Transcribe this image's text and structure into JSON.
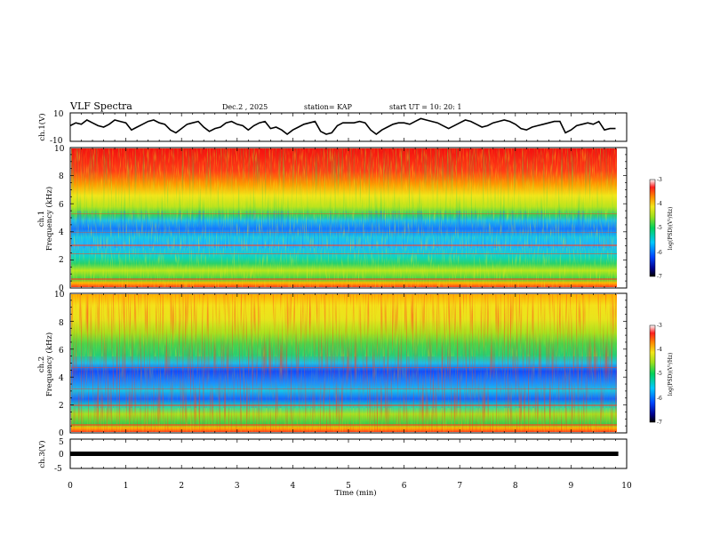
{
  "header": {
    "title": "VLF Spectra",
    "date": "Dec.2  , 2025",
    "station": "station= KAP",
    "start": "start  UT  =   10: 20: 1"
  },
  "chart_data": [
    {
      "name": "ch1-waveform",
      "type": "line",
      "ylabel": "ch.1(V)",
      "xlim": [
        0,
        10
      ],
      "ylim": [
        -10,
        10
      ],
      "yticks": [
        "10",
        "-10"
      ],
      "x": [
        0,
        0.1,
        0.2,
        0.3,
        0.4,
        0.5,
        0.6,
        0.7,
        0.8,
        0.9,
        1.0,
        1.1,
        1.2,
        1.3,
        1.4,
        1.5,
        1.6,
        1.7,
        1.8,
        1.9,
        2.0,
        2.1,
        2.2,
        2.3,
        2.4,
        2.5,
        2.6,
        2.7,
        2.8,
        2.9,
        3.0,
        3.1,
        3.2,
        3.3,
        3.4,
        3.5,
        3.6,
        3.7,
        3.8,
        3.9,
        4.0,
        4.1,
        4.2,
        4.3,
        4.4,
        4.5,
        4.6,
        4.7,
        4.8,
        4.9,
        5.0,
        5.1,
        5.2,
        5.3,
        5.4,
        5.5,
        5.6,
        5.7,
        5.8,
        5.9,
        6.0,
        6.1,
        6.2,
        6.3,
        6.4,
        6.5,
        6.6,
        6.7,
        6.8,
        6.9,
        7.0,
        7.1,
        7.2,
        7.3,
        7.4,
        7.5,
        7.6,
        7.7,
        7.8,
        7.9,
        8.0,
        8.1,
        8.2,
        8.3,
        8.4,
        8.5,
        8.6,
        8.7,
        8.8,
        8.9,
        9.0,
        9.1,
        9.2,
        9.3,
        9.4,
        9.5,
        9.6,
        9.7,
        9.8
      ],
      "y": [
        1,
        3,
        2,
        5,
        3,
        1,
        0,
        2,
        5,
        4,
        3,
        -2,
        0,
        2,
        4,
        5,
        3,
        2,
        -2,
        -4,
        -1,
        2,
        3,
        4,
        0,
        -3,
        -1,
        0,
        3,
        4,
        2,
        1,
        -2,
        1,
        3,
        4,
        -1,
        0,
        -2,
        -5,
        -2,
        0,
        2,
        3,
        4,
        -3,
        -5,
        -4,
        1,
        3,
        3,
        3,
        4,
        3,
        -2,
        -5,
        -2,
        0,
        2,
        3,
        3,
        2,
        4,
        6,
        5,
        4,
        3,
        1,
        -1,
        1,
        3,
        5,
        4,
        2,
        0,
        1,
        3,
        4,
        5,
        4,
        2,
        -1,
        -2,
        0,
        1,
        2,
        3,
        4,
        4,
        -4,
        -2,
        1,
        2,
        3,
        2,
        4,
        -2,
        -1,
        -1
      ]
    },
    {
      "name": "ch1-spectrogram",
      "type": "heatmap",
      "xlabel": "Time (min)",
      "ylabel": "Frequency (kHz)",
      "channel_label": "ch.1",
      "xlim": [
        0,
        9.85
      ],
      "ylim": [
        0,
        10
      ],
      "yticks": [
        "0",
        "2",
        "4",
        "6",
        "8",
        "10"
      ],
      "colorbar": {
        "min": -7,
        "max": -3,
        "ticks": [
          "-3",
          "-4",
          "-5",
          "-6",
          "-7"
        ],
        "label": "log(PSD)(V²/Hz)"
      },
      "profile_freq_khz": [
        0,
        0.5,
        1,
        1.5,
        2,
        2.5,
        3,
        3.5,
        4,
        4.5,
        5,
        5.5,
        6,
        6.5,
        7,
        8,
        9,
        10
      ],
      "profile_log_psd": [
        -4.0,
        -5.0,
        -5.4,
        -5.3,
        -5.0,
        -5.3,
        -5.6,
        -5.5,
        -5.6,
        -5.9,
        -5.4,
        -4.9,
        -4.6,
        -4.3,
        -4.0,
        -3.8,
        -3.6,
        -3.5
      ]
    },
    {
      "name": "ch2-spectrogram",
      "type": "heatmap",
      "xlabel": "Time (min)",
      "ylabel": "Frequency (kHz)",
      "channel_label": "ch.2",
      "xlim": [
        0,
        9.85
      ],
      "ylim": [
        0,
        10
      ],
      "yticks": [
        "0",
        "2",
        "4",
        "6",
        "8",
        "10"
      ],
      "colorbar": {
        "min": -7,
        "max": -3,
        "ticks": [
          "-3",
          "-4",
          "-5",
          "-6",
          "-7"
        ],
        "label": "log(PSD)(V²/Hz)"
      },
      "profile_freq_khz": [
        0,
        0.5,
        1,
        1.5,
        2,
        2.5,
        3,
        3.5,
        4,
        4.5,
        5,
        5.5,
        6,
        6.5,
        7,
        8,
        9,
        10
      ],
      "profile_log_psd": [
        -4.1,
        -4.9,
        -5.2,
        -5.3,
        -5.9,
        -5.6,
        -5.5,
        -5.8,
        -6.0,
        -5.7,
        -5.2,
        -5.0,
        -4.9,
        -4.8,
        -4.6,
        -4.4,
        -4.2,
        -4.1
      ]
    },
    {
      "name": "ch3-waveform",
      "type": "line",
      "ylabel": "ch.3(V)",
      "xlabel": "Time (min)",
      "xlim": [
        0,
        10
      ],
      "ylim": [
        -5,
        5
      ],
      "yticks": [
        "5",
        "0",
        "-5"
      ],
      "xticks": [
        "0",
        "1",
        "2",
        "3",
        "4",
        "5",
        "6",
        "7",
        "8",
        "9",
        "10"
      ],
      "x": [
        0,
        9.85
      ],
      "y": [
        0,
        0
      ]
    }
  ]
}
